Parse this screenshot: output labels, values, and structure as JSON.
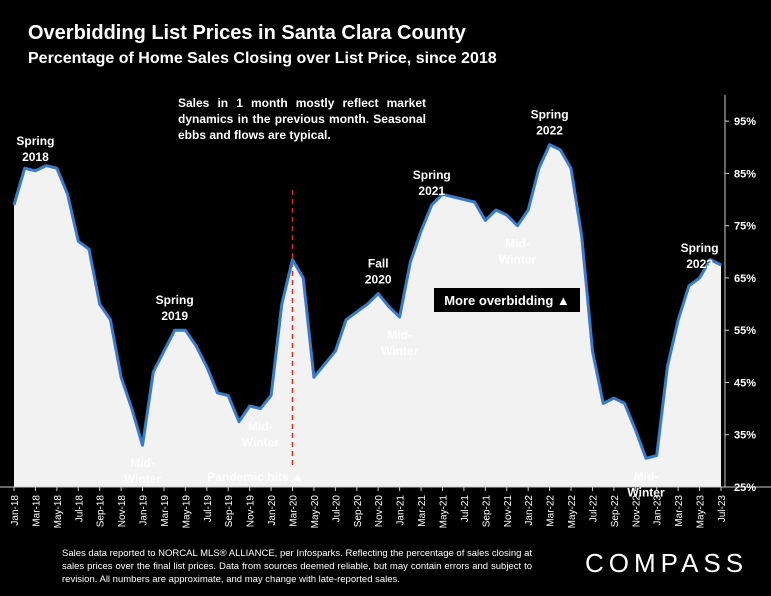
{
  "title": "Overbidding List Prices in Santa Clara County",
  "subtitle": "Percentage of Home Sales Closing over List Price, since 2018",
  "note": "Sales in 1 month mostly reflect market dynamics in the previous month. Seasonal ebbs and flows are typical.",
  "footnote": "Sales data reported to NORCAL MLS® ALLIANCE, per Infosparks. Reflecting the percentage of sales closing at sales prices over the final list prices. Data from sources deemed reliable, but may contain errors and subject to revision. All numbers are approximate, and may change with late-reported sales.",
  "brand": "COMPASS",
  "colors": {
    "line": "#3a7bc8",
    "fill": "#f2f2f2",
    "marker": "#d0302a",
    "background": "#000000"
  },
  "chart_data": {
    "type": "area",
    "ylim": [
      25,
      100
    ],
    "yticks": [
      "25%",
      "35%",
      "45%",
      "55%",
      "65%",
      "75%",
      "85%",
      "95%"
    ],
    "ytick_values": [
      25,
      35,
      45,
      55,
      65,
      75,
      85,
      95
    ],
    "x_labels": [
      "Jan-18",
      "Mar-18",
      "May-18",
      "Jul-18",
      "Sep-18",
      "Nov-18",
      "Jan-19",
      "Mar-19",
      "May-19",
      "Jul-19",
      "Sep-19",
      "Nov-19",
      "Jan-20",
      "Mar-20",
      "May-20",
      "Jul-20",
      "Sep-20",
      "Nov-20",
      "Jan-21",
      "Mar-21",
      "May-21",
      "Jul-21",
      "Sep-21",
      "Nov-21",
      "Jan-22",
      "Mar-22",
      "May-22",
      "Jul-22",
      "Sep-22",
      "Nov-22",
      "Jan-23",
      "Mar-23",
      "May-23",
      "Jul-23"
    ],
    "x": [
      "Jan-18",
      "Feb-18",
      "Mar-18",
      "Apr-18",
      "May-18",
      "Jun-18",
      "Jul-18",
      "Aug-18",
      "Sep-18",
      "Oct-18",
      "Nov-18",
      "Dec-18",
      "Jan-19",
      "Feb-19",
      "Mar-19",
      "Apr-19",
      "May-19",
      "Jun-19",
      "Jul-19",
      "Aug-19",
      "Sep-19",
      "Oct-19",
      "Nov-19",
      "Dec-19",
      "Jan-20",
      "Feb-20",
      "Mar-20",
      "Apr-20",
      "May-20",
      "Jun-20",
      "Jul-20",
      "Aug-20",
      "Sep-20",
      "Oct-20",
      "Nov-20",
      "Dec-20",
      "Jan-21",
      "Feb-21",
      "Mar-21",
      "Apr-21",
      "May-21",
      "Jun-21",
      "Jul-21",
      "Aug-21",
      "Sep-21",
      "Oct-21",
      "Nov-21",
      "Dec-21",
      "Jan-22",
      "Feb-22",
      "Mar-22",
      "Apr-22",
      "May-22",
      "Jun-22",
      "Jul-22",
      "Aug-22",
      "Sep-22",
      "Oct-22",
      "Nov-22",
      "Dec-22",
      "Jan-23",
      "Feb-23",
      "Mar-23",
      "Apr-23",
      "May-23",
      "Jun-23",
      "Jul-23"
    ],
    "values": [
      79,
      86,
      85.5,
      86.5,
      86,
      81,
      72,
      70.5,
      60,
      57,
      46,
      40,
      33,
      47,
      51,
      55,
      55,
      52,
      48,
      43,
      42.5,
      37.5,
      40.5,
      40,
      42.5,
      60,
      68.5,
      65,
      46,
      48.5,
      51,
      57,
      58.5,
      60,
      62,
      59.5,
      57.5,
      68,
      74,
      79,
      81,
      80.5,
      80,
      79.5,
      76,
      78,
      77,
      75,
      78,
      86,
      90.5,
      89.5,
      86,
      73,
      51,
      41,
      42,
      41,
      36,
      30.5,
      31,
      48,
      57,
      63.5,
      65,
      68.5,
      67.5
    ],
    "annotations": [
      {
        "text_lines": [
          "Spring",
          "2018"
        ],
        "index": 2,
        "position": "above"
      },
      {
        "text_lines": [
          "Mid-",
          "Winter"
        ],
        "index": 12,
        "position": "below"
      },
      {
        "text_lines": [
          "Spring",
          "2019"
        ],
        "index": 15,
        "position": "above"
      },
      {
        "text_lines": [
          "Mid-",
          "Winter"
        ],
        "index": 23,
        "position": "below"
      },
      {
        "text_lines": [
          "Fall",
          "2020"
        ],
        "index": 34,
        "position": "above"
      },
      {
        "text_lines": [
          "Mid-",
          "Winter"
        ],
        "index": 36,
        "position": "below"
      },
      {
        "text_lines": [
          "Spring",
          "2021"
        ],
        "index": 39,
        "position": "above"
      },
      {
        "text_lines": [
          "Mid-",
          "Winter"
        ],
        "index": 47,
        "position": "below"
      },
      {
        "text_lines": [
          "Spring",
          "2022"
        ],
        "index": 50,
        "position": "above"
      },
      {
        "text_lines": [
          "Mid-",
          "Winter"
        ],
        "index": 59,
        "position": "below"
      },
      {
        "text_lines": [
          "Spring",
          "2023"
        ],
        "index": 64,
        "position": "above"
      }
    ],
    "pandemic_marker": {
      "label": "Pandemic hits ▲",
      "x": "Mar-20"
    },
    "callout": {
      "label": "More overbidding ▲"
    }
  }
}
